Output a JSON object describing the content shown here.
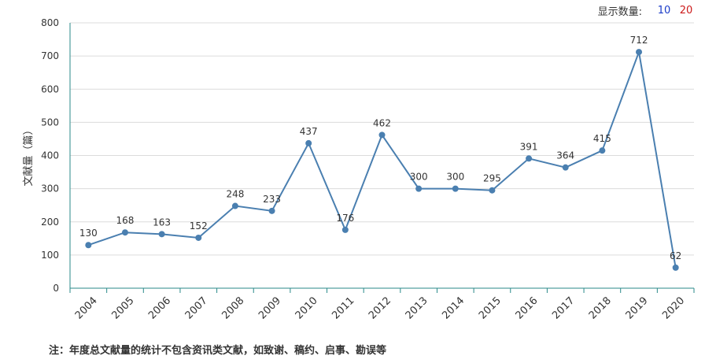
{
  "controls": {
    "label": "显示数量:",
    "options": [
      {
        "label": "10",
        "color": "#1a3cc8"
      },
      {
        "label": "20",
        "color": "#cc1a1a"
      }
    ]
  },
  "note": "注：年度总文献量的统计不包含资讯类文献，如致谢、稿约、启事、勘误等",
  "chart_data": {
    "type": "line",
    "ylabel": "文献量（篇）",
    "xlabel": "",
    "ylim": [
      0,
      800
    ],
    "yticks": [
      0,
      100,
      200,
      300,
      400,
      500,
      600,
      700,
      800
    ],
    "categories": [
      "2004",
      "2005",
      "2006",
      "2007",
      "2008",
      "2009",
      "2010",
      "2011",
      "2012",
      "2013",
      "2014",
      "2015",
      "2016",
      "2017",
      "2018",
      "2019",
      "2020"
    ],
    "series": [
      {
        "values": [
          130,
          168,
          163,
          152,
          248,
          233,
          437,
          176,
          462,
          300,
          300,
          295,
          391,
          364,
          415,
          712,
          62
        ]
      }
    ],
    "line_color": "#4a7fb0",
    "grid": true
  }
}
